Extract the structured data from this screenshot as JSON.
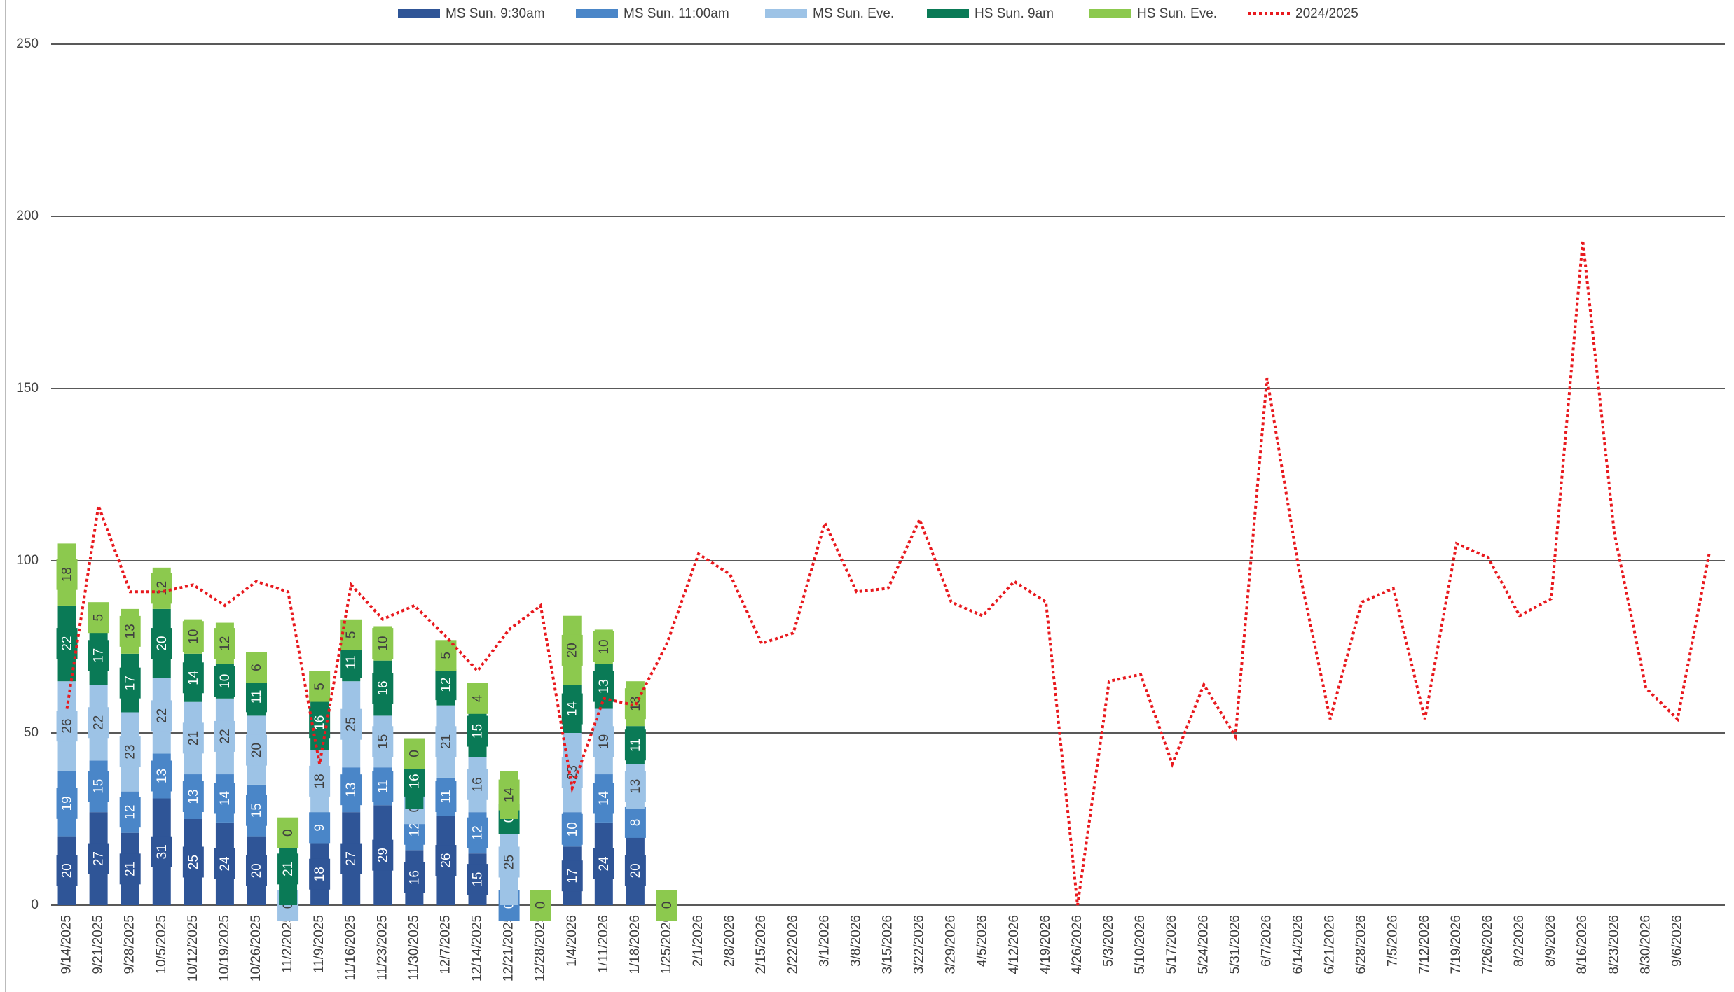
{
  "chart_data": {
    "type": "bar",
    "stacked": true,
    "categories": [
      "9/14/2025",
      "9/21/2025",
      "9/28/2025",
      "10/5/2025",
      "10/12/2025",
      "10/19/2025",
      "10/26/2025",
      "11/2/2025",
      "11/9/2025",
      "11/16/2025",
      "11/23/2025",
      "11/30/2025",
      "12/7/2025",
      "12/14/2025",
      "12/21/2025",
      "12/28/2025",
      "1/4/2026",
      "1/11/2026",
      "1/18/2026",
      "1/25/2026",
      "2/1/2026",
      "2/8/2026",
      "2/15/2026",
      "2/22/2026",
      "3/1/2026",
      "3/8/2026",
      "3/15/2026",
      "3/22/2026",
      "3/29/2026",
      "4/5/2026",
      "4/12/2026",
      "4/19/2026",
      "4/26/2026",
      "5/3/2026",
      "5/10/2026",
      "5/17/2026",
      "5/24/2026",
      "5/31/2026",
      "6/7/2026",
      "6/14/2026",
      "6/21/2026",
      "6/28/2026",
      "7/5/2026",
      "7/12/2026",
      "7/19/2026",
      "7/26/2026",
      "8/2/2026",
      "8/9/2026",
      "8/16/2026",
      "8/23/2026",
      "8/30/2026",
      "9/6/2026",
      null
    ],
    "series": [
      {
        "name": "MS Sun. 9:30am",
        "color": "#2f5597",
        "text_color": "#ffffff",
        "values": [
          20,
          27,
          21,
          31,
          25,
          24,
          20,
          null,
          18,
          27,
          29,
          16,
          26,
          15,
          null,
          null,
          17,
          24,
          20,
          null,
          null,
          null,
          null,
          null,
          null,
          null,
          null,
          null,
          null,
          null,
          null,
          null,
          null,
          null,
          null,
          null,
          null,
          null,
          null,
          null,
          null,
          null,
          null,
          null,
          null,
          null,
          null,
          null,
          null,
          null,
          null,
          null,
          null
        ]
      },
      {
        "name": "MS Sun. 11:00am",
        "color": "#4a86c8",
        "text_color": "#ffffff",
        "values": [
          19,
          15,
          12,
          13,
          13,
          14,
          15,
          null,
          9,
          13,
          11,
          12,
          11,
          12,
          0,
          null,
          10,
          14,
          8,
          null,
          null,
          null,
          null,
          null,
          null,
          null,
          null,
          null,
          null,
          null,
          null,
          null,
          null,
          null,
          null,
          null,
          null,
          null,
          null,
          null,
          null,
          null,
          null,
          null,
          null,
          null,
          null,
          null,
          null,
          null,
          null,
          null,
          null
        ]
      },
      {
        "name": "MS Sun. Eve.",
        "color": "#9dc3e6",
        "text_color": "#404040",
        "values": [
          26,
          22,
          23,
          22,
          21,
          22,
          20,
          0,
          18,
          25,
          15,
          0,
          21,
          16,
          25,
          null,
          23,
          19,
          13,
          null,
          null,
          null,
          null,
          null,
          null,
          null,
          null,
          null,
          null,
          null,
          null,
          null,
          null,
          null,
          null,
          null,
          null,
          null,
          null,
          null,
          null,
          null,
          null,
          null,
          null,
          null,
          null,
          null,
          null,
          null,
          null,
          null,
          null
        ]
      },
      {
        "name": "HS Sun. 9am",
        "color": "#0a7a56",
        "text_color": "#ffffff",
        "values": [
          22,
          17,
          17,
          20,
          14,
          10,
          11,
          21,
          16,
          11,
          16,
          16,
          12,
          15,
          0,
          null,
          14,
          13,
          11,
          null,
          null,
          null,
          null,
          null,
          null,
          null,
          null,
          null,
          null,
          null,
          null,
          null,
          null,
          null,
          null,
          null,
          null,
          null,
          null,
          null,
          null,
          null,
          null,
          null,
          null,
          null,
          null,
          null,
          null,
          null,
          null,
          null,
          null
        ]
      },
      {
        "name": "HS Sun. Eve.",
        "color": "#8cc94e",
        "text_color": "#404040",
        "values": [
          18,
          5,
          13,
          12,
          10,
          12,
          6,
          0,
          5,
          5,
          10,
          0,
          5,
          4,
          14,
          0,
          20,
          10,
          13,
          0,
          null,
          null,
          null,
          null,
          null,
          null,
          null,
          null,
          null,
          null,
          null,
          null,
          null,
          null,
          null,
          null,
          null,
          null,
          null,
          null,
          null,
          null,
          null,
          null,
          null,
          null,
          null,
          null,
          null,
          null,
          null,
          null,
          null
        ]
      },
      {
        "name": "2024/2025",
        "type": "line",
        "color": "#e8191e",
        "dashed": true,
        "values": [
          57,
          116,
          91,
          91,
          93,
          87,
          94,
          91,
          41,
          93,
          83,
          87,
          78,
          68,
          80,
          87,
          34,
          60,
          58,
          76,
          102,
          96,
          76,
          79,
          111,
          91,
          92,
          112,
          88,
          84,
          94,
          88,
          0,
          65,
          67,
          41,
          64,
          49,
          153,
          98,
          54,
          88,
          92,
          54,
          105,
          101,
          84,
          89,
          193,
          108,
          63,
          54,
          102
        ]
      }
    ],
    "ylim": [
      0,
      250
    ],
    "yticks": [
      0,
      50,
      100,
      150,
      200,
      250
    ],
    "grid": true,
    "legend": "top"
  }
}
